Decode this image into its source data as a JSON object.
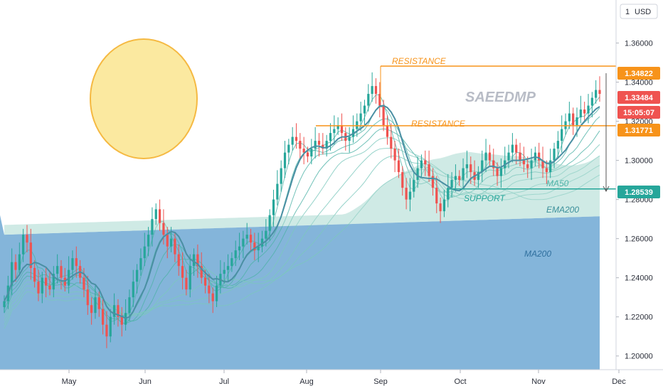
{
  "chart_data": {
    "type": "candlestick",
    "currency_label": "USD",
    "watermark": "SAEEDMP",
    "x_labels": [
      "May",
      "Jun",
      "Jul",
      "Aug",
      "Sep",
      "Oct",
      "Nov",
      "Dec"
    ],
    "y_ticks": [
      "1.36000",
      "1.34000",
      "1.32000",
      "1.30000",
      "1.28000",
      "1.26000",
      "1.24000",
      "1.22000",
      "1.20000"
    ],
    "y_tick_values": [
      1.36,
      1.34,
      1.32,
      1.3,
      1.28,
      1.26,
      1.24,
      1.22,
      1.2
    ],
    "ylim": [
      1.193,
      1.382
    ],
    "price_tags": [
      {
        "label": "1.34822",
        "value": 1.34822,
        "color": "#f7931a"
      },
      {
        "label": "1.33484",
        "value": 1.33484,
        "color": "#ef5350"
      },
      {
        "label": "15:05:07",
        "value": 1.3285,
        "color": "#ef5350"
      },
      {
        "label": "1.31771",
        "value": 1.31771,
        "color": "#f7931a"
      },
      {
        "label": "1.28539",
        "value": 1.28539,
        "color": "#26a69a"
      }
    ],
    "levels": [
      {
        "name": "RESISTANCE",
        "value": 1.34822,
        "color": "#f7931a"
      },
      {
        "name": "RESISTANCE",
        "value": 1.31771,
        "color": "#f7931a"
      },
      {
        "name": "SUPPORT",
        "value": 1.28539,
        "color": "#26a69a"
      }
    ],
    "annotations": {
      "resistance_1": "RESISTANCE",
      "resistance_2": "RESISTANCE",
      "support": "SUPPORT",
      "ma50": "MA50",
      "ema200": "EMA200",
      "ma200": "MA200"
    },
    "colors": {
      "up": "#26a69a",
      "down": "#ef5350",
      "resistance": "#f7931a",
      "support": "#26a69a",
      "ma200_fill": "#6fa8d4",
      "ema_band": "#a8d8d0",
      "sun": "#fbe9a0"
    },
    "series_close": [
      1.228,
      1.236,
      1.248,
      1.244,
      1.252,
      1.262,
      1.258,
      1.245,
      1.238,
      1.232,
      1.24,
      1.236,
      1.234,
      1.242,
      1.246,
      1.24,
      1.236,
      1.244,
      1.25,
      1.246,
      1.24,
      1.234,
      1.226,
      1.222,
      1.23,
      1.224,
      1.216,
      1.21,
      1.22,
      1.226,
      1.22,
      1.216,
      1.222,
      1.23,
      1.238,
      1.244,
      1.25,
      1.256,
      1.262,
      1.27,
      1.275,
      1.268,
      1.262,
      1.256,
      1.26,
      1.252,
      1.246,
      1.24,
      1.234,
      1.246,
      1.252,
      1.246,
      1.24,
      1.236,
      1.232,
      1.228,
      1.236,
      1.242,
      1.244,
      1.246,
      1.25,
      1.254,
      1.256,
      1.26,
      1.262,
      1.258,
      1.254,
      1.256,
      1.26,
      1.264,
      1.272,
      1.28,
      1.288,
      1.296,
      1.304,
      1.308,
      1.312,
      1.31,
      1.306,
      1.304,
      1.302,
      1.306,
      1.31,
      1.308,
      1.306,
      1.31,
      1.314,
      1.316,
      1.318,
      1.314,
      1.31,
      1.312,
      1.316,
      1.32,
      1.324,
      1.328,
      1.334,
      1.338,
      1.334,
      1.328,
      1.318,
      1.312,
      1.306,
      1.3,
      1.294,
      1.286,
      1.28,
      1.284,
      1.29,
      1.296,
      1.3,
      1.298,
      1.292,
      1.286,
      1.278,
      1.274,
      1.28,
      1.286,
      1.29,
      1.292,
      1.29,
      1.296,
      1.298,
      1.294,
      1.29,
      1.294,
      1.3,
      1.304,
      1.3,
      1.296,
      1.292,
      1.296,
      1.3,
      1.304,
      1.308,
      1.304,
      1.3,
      1.298,
      1.296,
      1.3,
      1.304,
      1.3,
      1.296,
      1.294,
      1.3,
      1.306,
      1.31,
      1.316,
      1.32,
      1.324,
      1.318,
      1.322,
      1.326,
      1.324,
      1.328,
      1.332,
      1.336,
      1.334
    ]
  }
}
